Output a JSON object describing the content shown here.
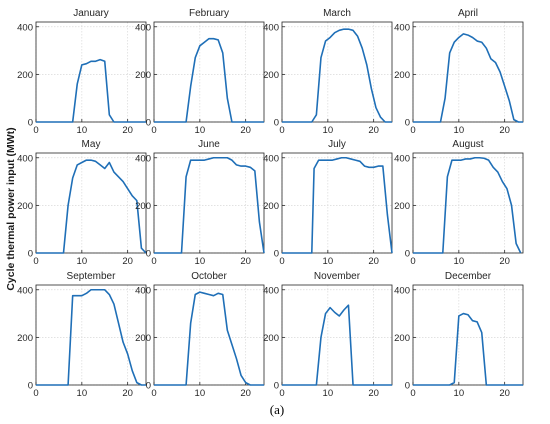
{
  "figure": {
    "ylabel": "Cycle thermal power input (MWt)",
    "caption": "(a)",
    "line_color": "#1f6fb7",
    "grid_color": "#d9d9d9"
  },
  "chart_data": [
    {
      "type": "line",
      "title": "January",
      "xlim": [
        0,
        24
      ],
      "ylim": [
        0,
        420
      ],
      "xticks": [
        0,
        10,
        20
      ],
      "yticks": [
        0,
        200,
        400
      ],
      "grid": true,
      "x": [
        0,
        8,
        9,
        10,
        11,
        12,
        13,
        14,
        15,
        16,
        17,
        24
      ],
      "y": [
        0,
        0,
        160,
        240,
        245,
        255,
        255,
        262,
        255,
        30,
        0,
        0
      ]
    },
    {
      "type": "line",
      "title": "February",
      "xlim": [
        0,
        24
      ],
      "ylim": [
        0,
        420
      ],
      "xticks": [
        0,
        10,
        20
      ],
      "yticks": [
        0,
        200,
        400
      ],
      "grid": true,
      "x": [
        0,
        7,
        8,
        9,
        10,
        11,
        12,
        13,
        14,
        15,
        16,
        17,
        24
      ],
      "y": [
        0,
        0,
        150,
        270,
        320,
        335,
        350,
        350,
        345,
        290,
        100,
        0,
        0
      ]
    },
    {
      "type": "line",
      "title": "March",
      "xlim": [
        0,
        24
      ],
      "ylim": [
        0,
        420
      ],
      "xticks": [
        0,
        10,
        20
      ],
      "yticks": [
        0,
        200,
        400
      ],
      "grid": true,
      "x": [
        0,
        6.5,
        7.5,
        8.5,
        9.5,
        10.5,
        11.5,
        12.5,
        13.5,
        14.5,
        15.5,
        16.5,
        17.5,
        18.5,
        19.5,
        20.5,
        21.5,
        22.5,
        24
      ],
      "y": [
        0,
        0,
        30,
        270,
        340,
        355,
        375,
        385,
        390,
        390,
        385,
        360,
        310,
        240,
        140,
        60,
        20,
        0,
        0
      ]
    },
    {
      "type": "line",
      "title": "April",
      "xlim": [
        0,
        24
      ],
      "ylim": [
        0,
        420
      ],
      "xticks": [
        0,
        10,
        20
      ],
      "yticks": [
        0,
        200,
        400
      ],
      "grid": true,
      "x": [
        0,
        6,
        7,
        8,
        9,
        10,
        11,
        12,
        13,
        14,
        15,
        16,
        17,
        18,
        19,
        20,
        21,
        22,
        23,
        24
      ],
      "y": [
        0,
        0,
        100,
        290,
        335,
        355,
        370,
        365,
        355,
        340,
        335,
        310,
        265,
        250,
        210,
        150,
        90,
        10,
        0,
        0
      ]
    },
    {
      "type": "line",
      "title": "May",
      "xlim": [
        0,
        24
      ],
      "ylim": [
        0,
        420
      ],
      "xticks": [
        0,
        10,
        20
      ],
      "yticks": [
        0,
        200,
        400
      ],
      "grid": true,
      "x": [
        0,
        6,
        7,
        8,
        9,
        10,
        11,
        12,
        13,
        14,
        15,
        16,
        17,
        18,
        19,
        20,
        21,
        22,
        23,
        24
      ],
      "y": [
        0,
        0,
        200,
        315,
        370,
        380,
        390,
        390,
        385,
        370,
        355,
        380,
        340,
        320,
        300,
        270,
        240,
        220,
        20,
        0
      ]
    },
    {
      "type": "line",
      "title": "June",
      "xlim": [
        0,
        24
      ],
      "ylim": [
        0,
        420
      ],
      "xticks": [
        0,
        10,
        20
      ],
      "yticks": [
        0,
        200,
        400
      ],
      "grid": true,
      "x": [
        0,
        6,
        7,
        8,
        9,
        10,
        11,
        12,
        13,
        14,
        15,
        16,
        17,
        18,
        19,
        20,
        21,
        22,
        23,
        24
      ],
      "y": [
        0,
        0,
        320,
        390,
        390,
        390,
        390,
        395,
        400,
        400,
        400,
        400,
        390,
        370,
        365,
        365,
        360,
        345,
        130,
        0
      ]
    },
    {
      "type": "line",
      "title": "July",
      "xlim": [
        0,
        24
      ],
      "ylim": [
        0,
        420
      ],
      "xticks": [
        0,
        10,
        20
      ],
      "yticks": [
        0,
        200,
        400
      ],
      "grid": true,
      "x": [
        0,
        6.5,
        7,
        8,
        9,
        10,
        11,
        12,
        13,
        14,
        15,
        16,
        17,
        18,
        19,
        20,
        21,
        22,
        23,
        24
      ],
      "y": [
        0,
        0,
        355,
        390,
        390,
        390,
        390,
        395,
        400,
        400,
        395,
        390,
        385,
        365,
        360,
        360,
        365,
        365,
        160,
        0
      ]
    },
    {
      "type": "line",
      "title": "August",
      "xlim": [
        0,
        24
      ],
      "ylim": [
        0,
        420
      ],
      "xticks": [
        0,
        10,
        20
      ],
      "yticks": [
        0,
        200,
        400
      ],
      "grid": true,
      "x": [
        0,
        6.5,
        7.5,
        8.5,
        9.5,
        10.5,
        11.5,
        12.5,
        13.5,
        14.5,
        15.5,
        16.5,
        17.5,
        18.5,
        19.5,
        20.5,
        21.5,
        22.5,
        23.5
      ],
      "y": [
        0,
        0,
        320,
        390,
        390,
        390,
        395,
        395,
        400,
        400,
        398,
        390,
        360,
        340,
        300,
        270,
        200,
        40,
        0
      ]
    },
    {
      "type": "line",
      "title": "September",
      "xlim": [
        0,
        24
      ],
      "ylim": [
        0,
        420
      ],
      "xticks": [
        0,
        10,
        20
      ],
      "yticks": [
        0,
        200,
        400
      ],
      "grid": true,
      "x": [
        0,
        7,
        8,
        9,
        10,
        11,
        12,
        13,
        14,
        15,
        16,
        17,
        18,
        19,
        20,
        21,
        22,
        23,
        24
      ],
      "y": [
        0,
        0,
        375,
        375,
        375,
        385,
        400,
        400,
        400,
        400,
        380,
        340,
        260,
        180,
        130,
        60,
        10,
        0,
        0
      ]
    },
    {
      "type": "line",
      "title": "October",
      "xlim": [
        0,
        24
      ],
      "ylim": [
        0,
        420
      ],
      "xticks": [
        0,
        10,
        20
      ],
      "yticks": [
        0,
        200,
        400
      ],
      "grid": true,
      "x": [
        0,
        7,
        8,
        9,
        10,
        11,
        12,
        13,
        14,
        15,
        16,
        17,
        18,
        19,
        20,
        21,
        24
      ],
      "y": [
        0,
        0,
        260,
        380,
        390,
        385,
        380,
        375,
        385,
        380,
        230,
        170,
        110,
        40,
        10,
        0,
        0
      ]
    },
    {
      "type": "line",
      "title": "November",
      "xlim": [
        0,
        24
      ],
      "ylim": [
        0,
        420
      ],
      "xticks": [
        0,
        10,
        20
      ],
      "yticks": [
        0,
        200,
        400
      ],
      "grid": true,
      "x": [
        0,
        7.5,
        8.5,
        9.5,
        10.5,
        11.5,
        12.5,
        13.5,
        14.5,
        15.5,
        24
      ],
      "y": [
        0,
        0,
        200,
        300,
        325,
        305,
        290,
        315,
        335,
        0,
        0
      ]
    },
    {
      "type": "line",
      "title": "December",
      "xlim": [
        0,
        24
      ],
      "ylim": [
        0,
        420
      ],
      "xticks": [
        0,
        10,
        20
      ],
      "yticks": [
        0,
        200,
        400
      ],
      "grid": true,
      "x": [
        0,
        8,
        9,
        10,
        11,
        12,
        13,
        14,
        15,
        16,
        17,
        24
      ],
      "y": [
        0,
        0,
        10,
        290,
        300,
        295,
        270,
        265,
        220,
        0,
        0,
        0
      ]
    }
  ]
}
